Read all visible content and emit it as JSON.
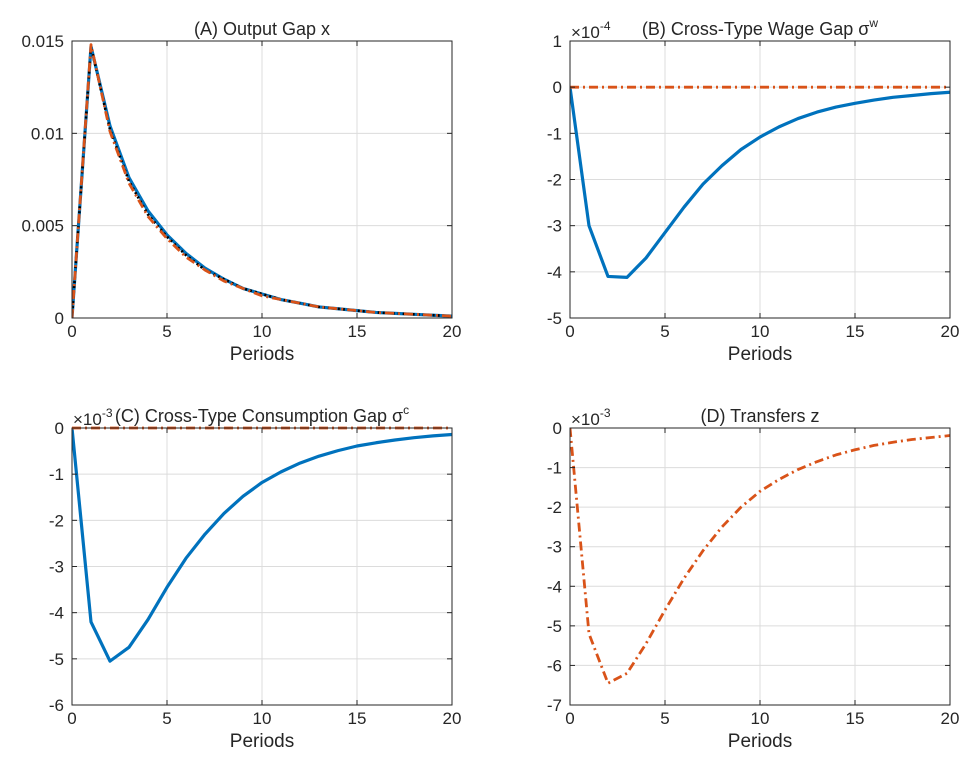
{
  "colors": {
    "blue": "#0072BD",
    "orange": "#D95319",
    "black": "#000000"
  },
  "chart_data": [
    {
      "type": "line",
      "title": "(A) Output Gap x",
      "xlabel": "Periods",
      "ylabel": "",
      "multiplier": "",
      "xlim": [
        0,
        20
      ],
      "ylim": [
        0,
        0.015
      ],
      "xticks": [
        "0",
        "5",
        "10",
        "15",
        "20"
      ],
      "yticks": [
        "0",
        "0.005",
        "0.01",
        "0.015"
      ],
      "ytick_values": [
        0,
        0.005,
        0.01,
        0.015
      ],
      "grid": true,
      "x": [
        0,
        1,
        2,
        3,
        4,
        5,
        6,
        7,
        8,
        9,
        10,
        11,
        12,
        13,
        14,
        15,
        16,
        17,
        18,
        19,
        20
      ],
      "series": [
        {
          "color": "#0072BD",
          "style": "solid",
          "values": [
            0,
            0.0147,
            0.0104,
            0.0076,
            0.0058,
            0.0045,
            0.0035,
            0.0027,
            0.0021,
            0.0016,
            0.0013,
            0.001,
            0.0008,
            0.0006,
            0.0005,
            0.0004,
            0.0003,
            0.00025,
            0.0002,
            0.00015,
            0.0001
          ]
        },
        {
          "color": "#000000",
          "style": "dotted",
          "values": [
            0,
            0.0147,
            0.0102,
            0.0074,
            0.0056,
            0.0044,
            0.0034,
            0.0026,
            0.0021,
            0.0016,
            0.0013,
            0.001,
            0.0008,
            0.0006,
            0.0005,
            0.0004,
            0.0003,
            0.00025,
            0.0002,
            0.00015,
            0.0001
          ]
        },
        {
          "color": "#D95319",
          "style": "dashdot",
          "values": [
            0,
            0.0148,
            0.0101,
            0.0073,
            0.0055,
            0.0043,
            0.0033,
            0.0026,
            0.002,
            0.0016,
            0.0012,
            0.001,
            0.0008,
            0.0006,
            0.0005,
            0.0004,
            0.0003,
            0.00025,
            0.0002,
            0.00015,
            0.0001
          ]
        }
      ]
    },
    {
      "type": "line",
      "title": "(B) Cross-Type Wage Gap σ",
      "title_sup": "w",
      "xlabel": "Periods",
      "ylabel": "",
      "multiplier": "×10",
      "multiplier_exp": "-4",
      "xlim": [
        0,
        20
      ],
      "ylim": [
        -5,
        1
      ],
      "xticks": [
        "0",
        "5",
        "10",
        "15",
        "20"
      ],
      "yticks": [
        "-5",
        "-4",
        "-3",
        "-2",
        "-1",
        "0",
        "1"
      ],
      "ytick_values": [
        -5,
        -4,
        -3,
        -2,
        -1,
        0,
        1
      ],
      "grid": true,
      "x": [
        0,
        1,
        2,
        3,
        4,
        5,
        6,
        7,
        8,
        9,
        10,
        11,
        12,
        13,
        14,
        15,
        16,
        17,
        18,
        19,
        20
      ],
      "series": [
        {
          "color": "#0072BD",
          "style": "solid",
          "values": [
            0,
            -3.0,
            -4.1,
            -4.12,
            -3.7,
            -3.15,
            -2.6,
            -2.1,
            -1.7,
            -1.35,
            -1.08,
            -0.86,
            -0.68,
            -0.54,
            -0.43,
            -0.35,
            -0.28,
            -0.22,
            -0.18,
            -0.14,
            -0.11
          ]
        },
        {
          "color": "#D95319",
          "style": "dashdot",
          "values": [
            0,
            0,
            0,
            0,
            0,
            0,
            0,
            0,
            0,
            0,
            0,
            0,
            0,
            0,
            0,
            0,
            0,
            0,
            0,
            0,
            0
          ]
        }
      ]
    },
    {
      "type": "line",
      "title": "(C) Cross-Type Consumption Gap σ",
      "title_sup": "c",
      "xlabel": "Periods",
      "ylabel": "",
      "multiplier": "×10",
      "multiplier_exp": "-3",
      "xlim": [
        0,
        20
      ],
      "ylim": [
        -6,
        0
      ],
      "xticks": [
        "0",
        "5",
        "10",
        "15",
        "20"
      ],
      "yticks": [
        "-6",
        "-5",
        "-4",
        "-3",
        "-2",
        "-1",
        "0"
      ],
      "ytick_values": [
        -6,
        -5,
        -4,
        -3,
        -2,
        -1,
        0
      ],
      "grid": true,
      "x": [
        0,
        1,
        2,
        3,
        4,
        5,
        6,
        7,
        8,
        9,
        10,
        11,
        12,
        13,
        14,
        15,
        16,
        17,
        18,
        19,
        20
      ],
      "series": [
        {
          "color": "#0072BD",
          "style": "solid",
          "values": [
            0,
            -4.2,
            -5.05,
            -4.75,
            -4.15,
            -3.45,
            -2.82,
            -2.3,
            -1.85,
            -1.48,
            -1.18,
            -0.95,
            -0.76,
            -0.61,
            -0.49,
            -0.39,
            -0.32,
            -0.26,
            -0.21,
            -0.17,
            -0.14
          ]
        },
        {
          "color": "#D95319",
          "style": "dashdot",
          "values": [
            0,
            0,
            0,
            0,
            0,
            0,
            0,
            0,
            0,
            0,
            0,
            0,
            0,
            0,
            0,
            0,
            0,
            0,
            0,
            0,
            0
          ]
        }
      ]
    },
    {
      "type": "line",
      "title": "(D) Transfers z",
      "xlabel": "Periods",
      "ylabel": "",
      "multiplier": "×10",
      "multiplier_exp": "-3",
      "xlim": [
        0,
        20
      ],
      "ylim": [
        -7,
        0
      ],
      "xticks": [
        "0",
        "5",
        "10",
        "15",
        "20"
      ],
      "yticks": [
        "-7",
        "-6",
        "-5",
        "-4",
        "-3",
        "-2",
        "-1",
        "0"
      ],
      "ytick_values": [
        -7,
        -6,
        -5,
        -4,
        -3,
        -2,
        -1,
        0
      ],
      "grid": true,
      "x": [
        0,
        1,
        2,
        3,
        4,
        5,
        6,
        7,
        8,
        9,
        10,
        11,
        12,
        13,
        14,
        15,
        16,
        17,
        18,
        19,
        20
      ],
      "series": [
        {
          "color": "#D95319",
          "style": "dashdot",
          "values": [
            0,
            -5.2,
            -6.45,
            -6.2,
            -5.45,
            -4.6,
            -3.8,
            -3.1,
            -2.5,
            -2.0,
            -1.6,
            -1.3,
            -1.05,
            -0.85,
            -0.68,
            -0.55,
            -0.44,
            -0.36,
            -0.29,
            -0.24,
            -0.19
          ]
        }
      ]
    }
  ]
}
